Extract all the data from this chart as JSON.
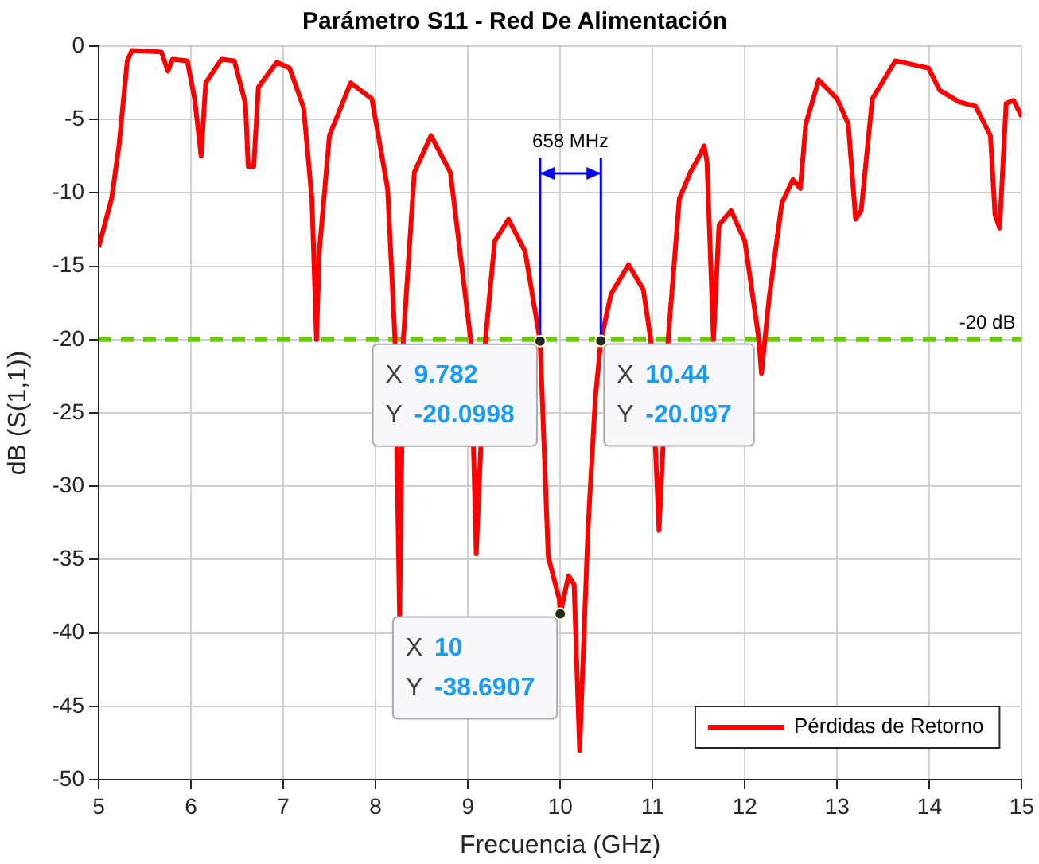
{
  "chart_data": {
    "type": "line",
    "title": "Parámetro S11 - Red De Alimentación",
    "xlabel": "Frecuencia (GHz)",
    "ylabel": "dB (S(1,1))",
    "xlim": [
      5,
      15
    ],
    "xticks": [
      5,
      6,
      7,
      8,
      9,
      10,
      11,
      12,
      13,
      14,
      15
    ],
    "ylim": [
      -50,
      0
    ],
    "yticks": [
      -50,
      -45,
      -40,
      -35,
      -30,
      -25,
      -20,
      -15,
      -10,
      -5,
      0
    ],
    "grid": true,
    "legend": "bottom right",
    "line_style": "solid",
    "marker": "none",
    "series": [
      {
        "name": "Pérdidas de Retorno",
        "color": "#ff0000",
        "x": [
          5,
          5.14,
          5.22,
          5.31,
          5.36,
          5.68,
          5.75,
          5.8,
          5.96,
          6.04,
          6.11,
          6.16,
          6.33,
          6.47,
          6.59,
          6.62,
          6.68,
          6.73,
          6.93,
          7.07,
          7.22,
          7.31,
          7.36,
          7.39,
          7.5,
          7.73,
          7.96,
          8.13,
          8.21,
          8.26,
          8.3,
          8.42,
          8.6,
          8.81,
          9.03,
          9.09,
          9.19,
          9.29,
          9.44,
          9.62,
          9.782,
          9.87,
          9.99,
          10,
          10.09,
          10.15,
          10.21,
          10.3,
          10.38,
          10.44,
          10.55,
          10.74,
          10.9,
          10.98,
          11.07,
          11.17,
          11.29,
          11.41,
          11.49,
          11.56,
          11.59,
          11.66,
          11.72,
          11.85,
          12,
          12.15,
          12.18,
          12.26,
          12.4,
          12.52,
          12.6,
          12.66,
          12.8,
          13,
          13.12,
          13.2,
          13.26,
          13.38,
          13.63,
          13.99,
          14.11,
          14.32,
          14.5,
          14.66,
          14.71,
          14.76,
          14.83,
          14.91,
          15
        ],
        "values": [
          -13.7,
          -10.4,
          -6.8,
          -1.0,
          -0.3,
          -0.4,
          -1.7,
          -0.9,
          -1.0,
          -3.6,
          -7.5,
          -2.5,
          -0.9,
          -1.0,
          -3.9,
          -8.2,
          -8.2,
          -2.8,
          -1.1,
          -1.5,
          -4.2,
          -10.4,
          -20.0,
          -14,
          -6.1,
          -2.5,
          -3.6,
          -9.7,
          -20,
          -38.8,
          -20,
          -8.6,
          -6.1,
          -8.6,
          -20,
          -34.6,
          -20,
          -13.3,
          -11.8,
          -14,
          -20.1,
          -34.8,
          -37.7,
          -38.7,
          -36.1,
          -36.7,
          -48.0,
          -33,
          -24,
          -20.1,
          -16.9,
          -14.9,
          -16.6,
          -20,
          -33,
          -19.9,
          -10.4,
          -8.6,
          -7.7,
          -6.8,
          -7.9,
          -20,
          -12.2,
          -11.2,
          -13.3,
          -19.9,
          -22.3,
          -17.3,
          -10.7,
          -9.1,
          -9.7,
          -5.3,
          -2.3,
          -3.6,
          -5.3,
          -11.8,
          -11.2,
          -3.6,
          -1.0,
          -1.5,
          -3.0,
          -3.8,
          -4.1,
          -6.1,
          -11.5,
          -12.4,
          -3.9,
          -3.7,
          -4.8
        ]
      }
    ],
    "ref_lines": [
      {
        "axis": "y",
        "value": -20,
        "label": "-20 dB",
        "color": "#66cc00",
        "line_style": "dashed"
      }
    ],
    "annotations": [
      {
        "text": "X 9.782\nY -20.0998",
        "x": 9.782,
        "y": -20.0998
      },
      {
        "text": "X 10.44\nY -20.097",
        "x": 10.44,
        "y": -20.097
      },
      {
        "text": "X 10\nY -38.6907",
        "x": 10,
        "y": -38.6907
      },
      {
        "text": "658 MHz",
        "x": 9.782,
        "y": -20.0998
      }
    ]
  }
}
